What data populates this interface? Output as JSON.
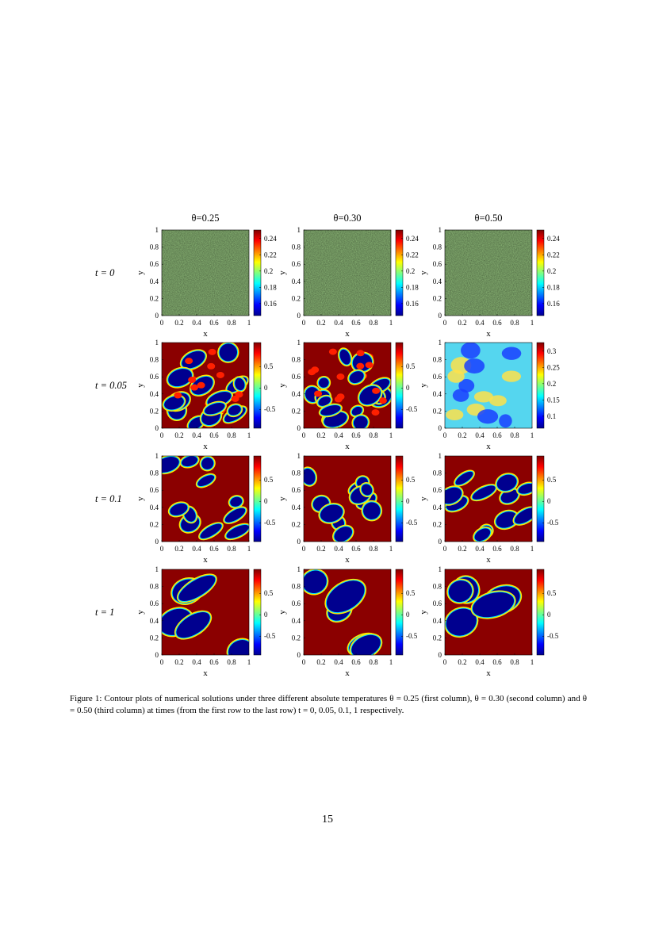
{
  "figure": {
    "column_titles": [
      "θ=0.25",
      "θ=0.30",
      "θ=0.50"
    ],
    "row_labels": [
      "t = 0",
      "t = 0.05",
      "t = 0.1",
      "t = 1"
    ],
    "xlabel": "x",
    "ylabel": "y",
    "x_ticks": [
      "0",
      "0.2",
      "0.4",
      "0.6",
      "0.8",
      "1"
    ],
    "y_ticks": [
      "0",
      "0.2",
      "0.4",
      "0.6",
      "0.8",
      "1"
    ],
    "colorbar_ticks": [
      [
        [
          "0.24",
          "0.22",
          "0.2",
          "0.18",
          "0.16"
        ],
        [
          "0.24",
          "0.22",
          "0.2",
          "0.18",
          "0.16"
        ],
        [
          "0.24",
          "0.22",
          "0.2",
          "0.18",
          "0.16"
        ]
      ],
      [
        [
          "0.5",
          "0",
          "-0.5"
        ],
        [
          "0.5",
          "0",
          "-0.5"
        ],
        [
          "0.3",
          "0.25",
          "0.2",
          "0.15",
          "0.1"
        ]
      ],
      [
        [
          "0.5",
          "0",
          "-0.5"
        ],
        [
          "0.5",
          "0",
          "-0.5"
        ],
        [
          "0.5",
          "0",
          "-0.5"
        ]
      ],
      [
        [
          "0.5",
          "0",
          "-0.5"
        ],
        [
          "0.5",
          "0",
          "-0.5"
        ],
        [
          "0.5",
          "0",
          "-0.5"
        ]
      ]
    ],
    "colormap": [
      "#00008f",
      "#0000ff",
      "#00ffff",
      "#ffff00",
      "#ff0000",
      "#800000"
    ]
  },
  "caption": "Figure 1: Contour plots of numerical solutions under three different absolute temperatures θ = 0.25 (first column), θ = 0.30 (second column) and θ = 0.50 (third column) at times (from the first row to the last row) t = 0, 0.05, 0.1, 1 respectively.",
  "page_number": "15"
}
